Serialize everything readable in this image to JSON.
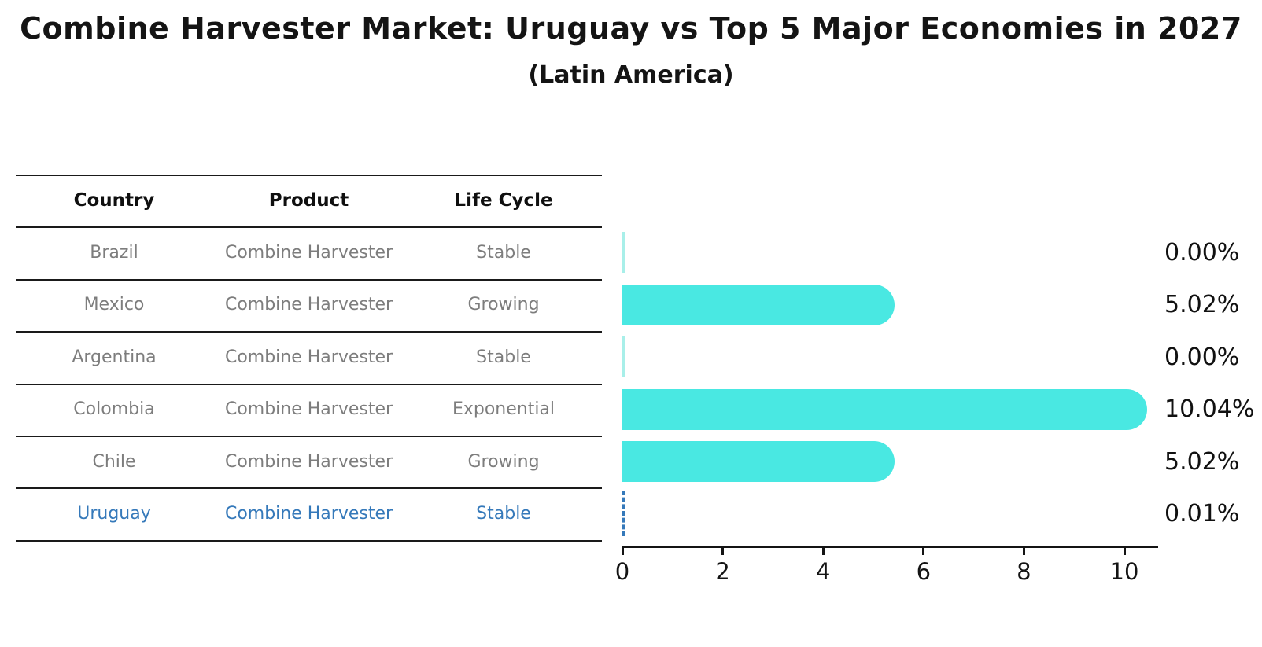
{
  "title": "Combine Harvester Market: Uruguay vs Top 5 Major Economies in 2027",
  "subtitle": "(Latin America)",
  "table": {
    "headers": [
      "Country",
      "Product",
      "Life Cycle"
    ],
    "rows": [
      {
        "country": "Brazil",
        "product": "Combine Harvester",
        "life_cycle": "Stable"
      },
      {
        "country": "Mexico",
        "product": "Combine Harvester",
        "life_cycle": "Growing"
      },
      {
        "country": "Argentina",
        "product": "Combine Harvester",
        "life_cycle": "Stable"
      },
      {
        "country": "Colombia",
        "product": "Combine Harvester",
        "life_cycle": "Exponential"
      },
      {
        "country": "Chile",
        "product": "Combine Harvester",
        "life_cycle": "Growing"
      },
      {
        "country": "Uruguay",
        "product": "Combine Harvester",
        "life_cycle": "Stable"
      }
    ],
    "highlight_index": 5
  },
  "chart_data": {
    "type": "bar",
    "orientation": "horizontal",
    "categories": [
      "Brazil",
      "Mexico",
      "Argentina",
      "Colombia",
      "Chile",
      "Uruguay"
    ],
    "values": [
      0.0,
      5.02,
      0.0,
      10.04,
      5.02,
      0.01
    ],
    "value_labels": [
      "0.00%",
      "5.02%",
      "0.00%",
      "10.04%",
      "5.02%",
      "0.01%"
    ],
    "x_ticks": [
      "0",
      "2",
      "4",
      "6",
      "8",
      "10"
    ],
    "xlim": [
      0,
      10.7
    ],
    "grid": false,
    "legend": false,
    "highlight_index": 5,
    "highlight_style": "dashed-line"
  },
  "colors": {
    "bar": "#49e8e2",
    "zero_bar": "#a8efe9",
    "highlight_blue": "#3579ba",
    "text_dark": "#141414",
    "text_gray": "#7d7d7d"
  }
}
